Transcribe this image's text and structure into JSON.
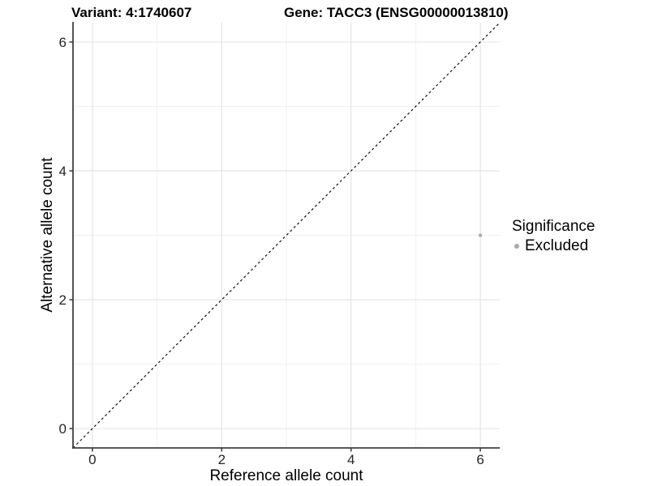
{
  "page": {
    "background": "#ffffff"
  },
  "header": {
    "variant_title": "Variant: 4:1740607",
    "gene_title": "Gene: TACC3 (ENSG00000013810)"
  },
  "legend": {
    "title": "Significance",
    "items": [
      {
        "label": "Excluded",
        "color": "#a9a9a9"
      }
    ]
  },
  "chart_data": {
    "type": "scatter",
    "title": "Variant: 4:1740607   Gene: TACC3 (ENSG00000013810)",
    "xlabel": "Reference allele count",
    "ylabel": "Alternative allele count",
    "xlim": [
      -0.3,
      6.3
    ],
    "ylim": [
      -0.3,
      6.3
    ],
    "x_ticks": [
      0,
      2,
      4,
      6
    ],
    "y_ticks": [
      0,
      2,
      4,
      6
    ],
    "minor_grid_x": [
      1,
      3,
      5
    ],
    "minor_grid_y": [
      1,
      3,
      5
    ],
    "grid": "on",
    "legend_position": "right",
    "legend_title": "Significance",
    "series": [
      {
        "name": "Excluded",
        "color": "#ababab",
        "point_radius": 2.2,
        "points": [
          {
            "x": 6,
            "y": 3
          }
        ]
      }
    ],
    "reference_line": {
      "slope": 1,
      "intercept": 0,
      "style": "dashed",
      "color": "#111111"
    },
    "style": {
      "major_grid_color": "#e3e3e3",
      "minor_grid_color": "#f0f0f0",
      "axis_line_color": "#404040",
      "tick_label_color": "#262626",
      "tick_label_size": 17
    }
  }
}
